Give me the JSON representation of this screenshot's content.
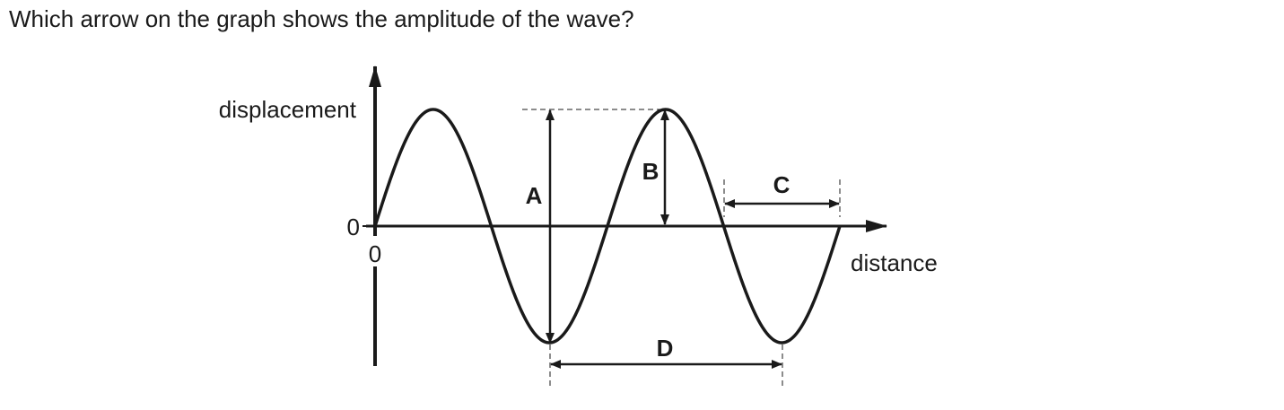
{
  "question": "Which arrow on the graph shows the amplitude of the wave?",
  "diagram": {
    "y_axis_label": "displacement",
    "x_axis_label": "distance",
    "y_origin_label": "0",
    "x_origin_label": "0",
    "arrows": {
      "a": "A",
      "b": "B",
      "c": "C",
      "d": "D"
    }
  }
}
